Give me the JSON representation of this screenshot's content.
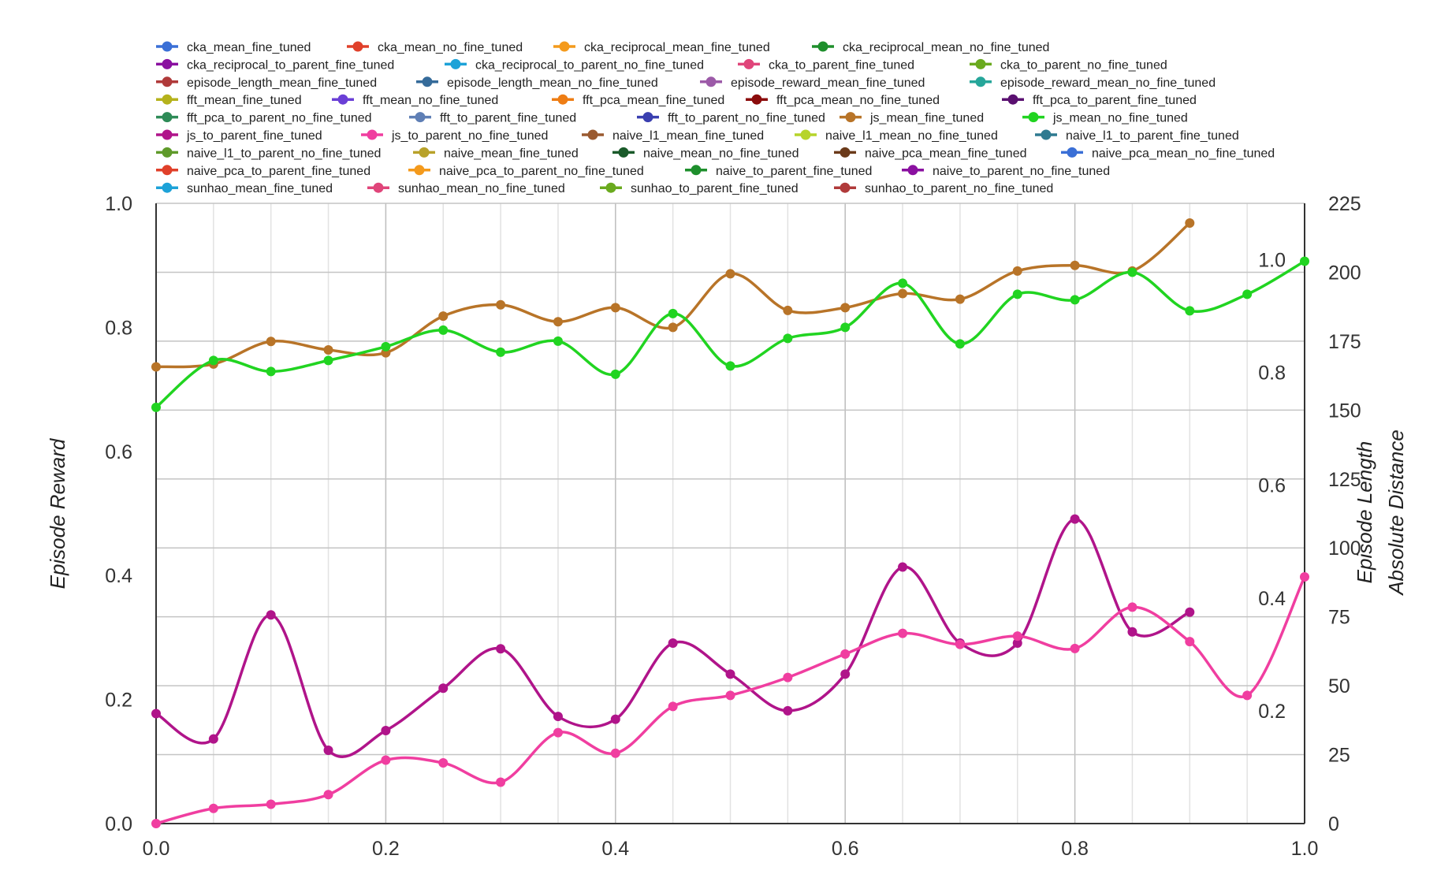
{
  "chart_data": {
    "type": "line",
    "x_axis": {
      "range": [
        0.0,
        1.0
      ],
      "ticks": [
        "0.0",
        "0.2",
        "0.4",
        "0.6",
        "0.8",
        "1.0"
      ]
    },
    "y_axes": {
      "reward": {
        "label": "Episode Reward",
        "range": [
          0.0,
          1.0
        ],
        "ticks": [
          "0.0",
          "0.2",
          "0.4",
          "0.6",
          "0.8",
          "1.0"
        ]
      },
      "length": {
        "label": "Episode Length",
        "range": [
          0,
          225
        ],
        "ticks": [
          "0",
          "25",
          "50",
          "75",
          "100",
          "125",
          "150",
          "175",
          "200",
          "225"
        ]
      },
      "distance": {
        "label": "Absolute Distance",
        "range": [
          0.0,
          1.1
        ],
        "ticks": [
          "0.2",
          "0.4",
          "0.6",
          "0.8",
          "1.0"
        ]
      }
    },
    "grid": true,
    "legend_position": "top",
    "legend": [
      {
        "name": "cka_mean_fine_tuned",
        "color": "#3a6fd6"
      },
      {
        "name": "cka_mean_no_fine_tuned",
        "color": "#e0402a"
      },
      {
        "name": "cka_reciprocal_mean_fine_tuned",
        "color": "#f49a1c"
      },
      {
        "name": "cka_reciprocal_mean_no_fine_tuned",
        "color": "#1e8f2c"
      },
      {
        "name": "cka_reciprocal_to_parent_fine_tuned",
        "color": "#8a10a0"
      },
      {
        "name": "cka_reciprocal_to_parent_no_fine_tuned",
        "color": "#1da2d8"
      },
      {
        "name": "cka_to_parent_fine_tuned",
        "color": "#e0457a"
      },
      {
        "name": "cka_to_parent_no_fine_tuned",
        "color": "#6aaa1e"
      },
      {
        "name": "episode_length_mean_fine_tuned",
        "color": "#b03a3a"
      },
      {
        "name": "episode_length_mean_no_fine_tuned",
        "color": "#356b9a"
      },
      {
        "name": "episode_reward_mean_fine_tuned",
        "color": "#9c5aa8"
      },
      {
        "name": "episode_reward_mean_no_fine_tuned",
        "color": "#26a69a"
      },
      {
        "name": "fft_mean_fine_tuned",
        "color": "#b5b21c"
      },
      {
        "name": "fft_mean_no_fine_tuned",
        "color": "#6a3fd6"
      },
      {
        "name": "fft_pca_mean_fine_tuned",
        "color": "#ee7d14"
      },
      {
        "name": "fft_pca_mean_no_fine_tuned",
        "color": "#8b0c0c"
      },
      {
        "name": "fft_pca_to_parent_fine_tuned",
        "color": "#5a1070"
      },
      {
        "name": "fft_pca_to_parent_no_fine_tuned",
        "color": "#2e8b57"
      },
      {
        "name": "fft_to_parent_fine_tuned",
        "color": "#5f7fb5"
      },
      {
        "name": "fft_to_parent_no_fine_tuned",
        "color": "#3a3fb0"
      },
      {
        "name": "js_mean_fine_tuned",
        "color": "#b87428"
      },
      {
        "name": "js_mean_no_fine_tuned",
        "color": "#21d421"
      },
      {
        "name": "js_to_parent_fine_tuned",
        "color": "#b0148a"
      },
      {
        "name": "js_to_parent_no_fine_tuned",
        "color": "#f03ea0"
      },
      {
        "name": "naive_l1_mean_fine_tuned",
        "color": "#9a5a30"
      },
      {
        "name": "naive_l1_mean_no_fine_tuned",
        "color": "#b6d42a"
      },
      {
        "name": "naive_l1_to_parent_fine_tuned",
        "color": "#2f7a90"
      },
      {
        "name": "naive_l1_to_parent_no_fine_tuned",
        "color": "#5f9a2a"
      },
      {
        "name": "naive_mean_fine_tuned",
        "color": "#b8a22a"
      },
      {
        "name": "naive_mean_no_fine_tuned",
        "color": "#1a5a2a"
      },
      {
        "name": "naive_pca_mean_fine_tuned",
        "color": "#6b3a1a"
      },
      {
        "name": "naive_pca_mean_no_fine_tuned",
        "color": "#3a6fd6"
      },
      {
        "name": "naive_pca_to_parent_fine_tuned",
        "color": "#e0402a"
      },
      {
        "name": "naive_pca_to_parent_no_fine_tuned",
        "color": "#f49a1c"
      },
      {
        "name": "naive_to_parent_fine_tuned",
        "color": "#1e8f2c"
      },
      {
        "name": "naive_to_parent_no_fine_tuned",
        "color": "#8a10a0"
      },
      {
        "name": "sunhao_mean_fine_tuned",
        "color": "#1da2d8"
      },
      {
        "name": "sunhao_mean_no_fine_tuned",
        "color": "#e0457a"
      },
      {
        "name": "sunhao_to_parent_fine_tuned",
        "color": "#6aaa1e"
      },
      {
        "name": "sunhao_to_parent_no_fine_tuned",
        "color": "#b03a3a"
      }
    ],
    "series": [
      {
        "name": "js_mean_fine_tuned",
        "axis": "distance",
        "color": "#b87428",
        "x": [
          0.0,
          0.05,
          0.1,
          0.15,
          0.2,
          0.25,
          0.3,
          0.35,
          0.4,
          0.45,
          0.5,
          0.55,
          0.6,
          0.65,
          0.7,
          0.75,
          0.8,
          0.85,
          0.9
        ],
        "y": [
          0.81,
          0.815,
          0.855,
          0.84,
          0.835,
          0.9,
          0.92,
          0.89,
          0.915,
          0.88,
          0.975,
          0.91,
          0.915,
          0.94,
          0.93,
          0.98,
          0.99,
          0.98,
          1.065
        ]
      },
      {
        "name": "js_mean_no_fine_tuned",
        "axis": "length",
        "color": "#21d421",
        "x": [
          0.0,
          0.05,
          0.1,
          0.15,
          0.2,
          0.25,
          0.3,
          0.35,
          0.4,
          0.45,
          0.5,
          0.55,
          0.6,
          0.65,
          0.7,
          0.75,
          0.8,
          0.85,
          0.9,
          0.95,
          1.0
        ],
        "y": [
          151,
          168,
          164,
          168,
          173,
          179,
          171,
          175,
          163,
          185,
          166,
          176,
          180,
          196,
          174,
          192,
          190,
          200,
          186,
          192,
          204
        ]
      },
      {
        "name": "js_to_parent_fine_tuned",
        "axis": "distance",
        "color": "#b0148a",
        "x": [
          0.0,
          0.05,
          0.1,
          0.15,
          0.2,
          0.25,
          0.3,
          0.35,
          0.4,
          0.45,
          0.5,
          0.55,
          0.6,
          0.65,
          0.7,
          0.75,
          0.8,
          0.85,
          0.9
        ],
        "y": [
          0.195,
          0.15,
          0.37,
          0.13,
          0.165,
          0.24,
          0.31,
          0.19,
          0.185,
          0.32,
          0.265,
          0.2,
          0.265,
          0.455,
          0.32,
          0.32,
          0.54,
          0.34,
          0.375
        ]
      },
      {
        "name": "js_to_parent_no_fine_tuned",
        "axis": "length",
        "color": "#f03ea0",
        "x": [
          0.0,
          0.05,
          0.1,
          0.15,
          0.2,
          0.25,
          0.3,
          0.35,
          0.4,
          0.45,
          0.5,
          0.55,
          0.6,
          0.65,
          0.7,
          0.75,
          0.8,
          0.85,
          0.9,
          0.95,
          1.0
        ],
        "y": [
          0,
          5.5,
          7,
          10.5,
          23,
          22,
          15,
          33,
          25.5,
          42.5,
          46.5,
          53,
          61.5,
          69,
          65,
          68,
          63.5,
          78.5,
          66,
          46.5,
          89.5
        ]
      }
    ]
  }
}
